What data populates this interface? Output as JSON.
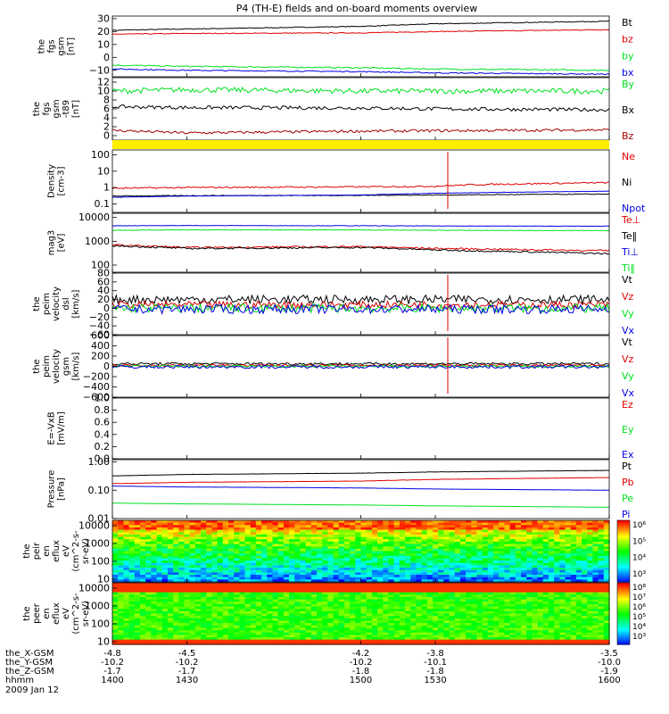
{
  "title": "P4 (TH-E) fields and on-board moments overview",
  "footer": {
    "rows": [
      {
        "label": "the_X-GSM",
        "values": [
          "-4.8",
          "-4.5",
          "-4.2",
          "-3.8",
          "-3.5"
        ]
      },
      {
        "label": "the_Y-GSM",
        "values": [
          "-10.2",
          "-10.2",
          "-10.2",
          "-10.1",
          "-10.0"
        ]
      },
      {
        "label": "the_Z-GSM",
        "values": [
          "-1.7",
          "-1.7",
          "-1.8",
          "-1.8",
          "-1.9"
        ]
      },
      {
        "label": "hhmm",
        "values": [
          "1400",
          "1430",
          "1500",
          "1530",
          "1600"
        ]
      }
    ],
    "date": "2009 Jan 12"
  },
  "colors": {
    "black": "#000000",
    "red": "#e00000",
    "green": "#00e020",
    "blue": "#0000e0",
    "darkred": "#a00000",
    "yellow": "#ffee00"
  },
  "chart_data": [
    {
      "type": "line",
      "ylabel": [
        "the",
        "fgs",
        "gsm",
        "[nT]"
      ],
      "ylim": [
        -15,
        32
      ],
      "yticks": [
        "30",
        "20",
        "10",
        "0",
        "−10"
      ],
      "yticks_vals": [
        30,
        20,
        10,
        0,
        -10
      ],
      "legend": [
        {
          "name": "Bt",
          "color": "black"
        },
        {
          "name": "bz",
          "color": "red"
        },
        {
          "name": "by",
          "color": "green"
        },
        {
          "name": "bx",
          "color": "blue"
        }
      ],
      "series": [
        {
          "name": "Bt",
          "color": "black",
          "x": [
            1400,
            1430,
            1500,
            1530,
            1600
          ],
          "values": [
            21,
            22,
            24,
            26,
            28
          ],
          "noise": 0.3
        },
        {
          "name": "bz",
          "color": "red",
          "x": [
            1400,
            1430,
            1500,
            1530,
            1600
          ],
          "values": [
            18,
            18.5,
            19,
            20,
            21.5
          ],
          "noise": 0.3
        },
        {
          "name": "by",
          "color": "green",
          "x": [
            1400,
            1430,
            1500,
            1530,
            1600
          ],
          "values": [
            -6,
            -7,
            -8,
            -9,
            -10
          ],
          "noise": 0.5
        },
        {
          "name": "bx",
          "color": "blue",
          "x": [
            1400,
            1430,
            1500,
            1530,
            1600
          ],
          "values": [
            -9,
            -10,
            -11,
            -12,
            -13
          ],
          "noise": 0.4
        }
      ]
    },
    {
      "type": "line",
      "ylabel": [
        "the",
        "fgs",
        "gsm",
        "-t89",
        "[nT]"
      ],
      "ylim": [
        -1,
        13
      ],
      "yticks": [
        "12",
        "10",
        "8",
        "6",
        "4",
        "2",
        "0"
      ],
      "yticks_vals": [
        12,
        10,
        8,
        6,
        4,
        2,
        0
      ],
      "legend": [
        {
          "name": "By",
          "color": "green"
        },
        {
          "name": "Bx",
          "color": "black"
        },
        {
          "name": "Bz",
          "color": "darkred"
        }
      ],
      "series": [
        {
          "name": "By",
          "color": "green",
          "x": [
            1400,
            1430,
            1500,
            1530,
            1600
          ],
          "values": [
            10,
            10.3,
            10,
            10,
            10
          ],
          "noise": 0.6
        },
        {
          "name": "Bx",
          "color": "black",
          "x": [
            1400,
            1430,
            1500,
            1530,
            1600
          ],
          "values": [
            6.5,
            6.3,
            6.2,
            6,
            5.8
          ],
          "noise": 0.4
        },
        {
          "name": "Bz",
          "color": "darkred",
          "x": [
            1400,
            1430,
            1500,
            1530,
            1600
          ],
          "values": [
            1.2,
            0.6,
            1,
            1.1,
            1.3
          ],
          "noise": 0.3
        }
      ]
    },
    {
      "type": "bar_strip",
      "color": "yellow"
    },
    {
      "type": "line",
      "log": true,
      "ylabel": [
        "Density",
        "[cm-3]"
      ],
      "ylim": [
        0.03,
        200
      ],
      "yticks": [
        "100",
        "10",
        "1",
        "0.1"
      ],
      "yticks_vals": [
        100,
        10,
        1,
        0.1
      ],
      "legend": [
        {
          "name": "Ne",
          "color": "red"
        },
        {
          "name": "Ni",
          "color": "black"
        },
        {
          "name": "Npot",
          "color": "blue"
        }
      ],
      "series": [
        {
          "name": "Ne",
          "color": "red",
          "x": [
            1400,
            1430,
            1500,
            1530,
            1545,
            1600
          ],
          "values": [
            0.9,
            1.0,
            1.1,
            1.2,
            1.5,
            2.0
          ],
          "noise": 0.1
        },
        {
          "name": "Ni",
          "color": "black",
          "x": [
            1400,
            1430,
            1500,
            1530,
            1600
          ],
          "values": [
            0.3,
            0.32,
            0.33,
            0.35,
            0.4
          ],
          "noise": 0.05
        },
        {
          "name": "Npot",
          "color": "blue",
          "x": [
            1400,
            1430,
            1500,
            1530,
            1600
          ],
          "values": [
            0.25,
            0.3,
            0.35,
            0.45,
            0.6
          ],
          "noise": 0.02
        }
      ]
    },
    {
      "type": "line",
      "log": true,
      "ylabel": [
        "mag3",
        "[eV]"
      ],
      "ylim": [
        50,
        15000
      ],
      "yticks": [
        "10000",
        "1000",
        "100"
      ],
      "yticks_vals": [
        10000,
        1000,
        100
      ],
      "legend": [
        {
          "name": "Te⊥",
          "color": "red"
        },
        {
          "name": "Te‖",
          "color": "black"
        },
        {
          "name": "Ti⊥",
          "color": "blue"
        },
        {
          "name": "Ti‖",
          "color": "green"
        }
      ],
      "series": [
        {
          "name": "Te⊥",
          "color": "red",
          "x": [
            1400,
            1430,
            1500,
            1530,
            1600
          ],
          "values": [
            700,
            550,
            600,
            500,
            400
          ],
          "noise": 0.08
        },
        {
          "name": "Te‖",
          "color": "black",
          "x": [
            1400,
            1430,
            1500,
            1530,
            1600
          ],
          "values": [
            650,
            500,
            550,
            430,
            300
          ],
          "noise": 0.08
        },
        {
          "name": "Ti⊥",
          "color": "blue",
          "x": [
            1400,
            1430,
            1500,
            1530,
            1600
          ],
          "values": [
            4500,
            4600,
            4500,
            4400,
            4300
          ],
          "noise": 0.02
        },
        {
          "name": "Ti‖",
          "color": "green",
          "x": [
            1400,
            1430,
            1500,
            1530,
            1600
          ],
          "values": [
            2900,
            3000,
            3000,
            2900,
            2800
          ],
          "noise": 0.02
        }
      ]
    },
    {
      "type": "line",
      "ylabel": [
        "the",
        "peim",
        "velocity",
        "dsl",
        "[km/s]"
      ],
      "ylim": [
        -60,
        80
      ],
      "yticks": [
        "80",
        "60",
        "40",
        "20",
        "0",
        "−20",
        "−40",
        "−60"
      ],
      "yticks_vals": [
        80,
        60,
        40,
        20,
        0,
        -20,
        -40,
        -60
      ],
      "legend": [
        {
          "name": "Vt",
          "color": "black"
        },
        {
          "name": "Vz",
          "color": "red"
        },
        {
          "name": "Vy",
          "color": "green"
        },
        {
          "name": "Vx",
          "color": "blue"
        }
      ],
      "series": [
        {
          "name": "Vt",
          "color": "black",
          "x": [
            1400,
            1600
          ],
          "values": [
            20,
            20
          ],
          "noise": 10
        },
        {
          "name": "Vz",
          "color": "red",
          "x": [
            1400,
            1600
          ],
          "values": [
            8,
            8
          ],
          "noise": 8
        },
        {
          "name": "Vy",
          "color": "green",
          "x": [
            1400,
            1600
          ],
          "values": [
            0,
            0
          ],
          "noise": 10
        },
        {
          "name": "Vx",
          "color": "blue",
          "x": [
            1400,
            1600
          ],
          "values": [
            -2,
            -2
          ],
          "noise": 10
        }
      ]
    },
    {
      "type": "line",
      "ylabel": [
        "the",
        "peim",
        "velocity",
        "gsm",
        "[km/s]"
      ],
      "ylim": [
        -600,
        600
      ],
      "yticks": [
        "600",
        "400",
        "200",
        "0",
        "−200",
        "−400",
        "−600"
      ],
      "yticks_vals": [
        600,
        400,
        200,
        0,
        -200,
        -400,
        -600
      ],
      "legend": [
        {
          "name": "Vt",
          "color": "black"
        },
        {
          "name": "Vz",
          "color": "red"
        },
        {
          "name": "Vy",
          "color": "green"
        },
        {
          "name": "Vx",
          "color": "blue"
        }
      ],
      "series": [
        {
          "name": "Vt",
          "color": "black",
          "x": [
            1400,
            1600
          ],
          "values": [
            50,
            50
          ],
          "noise": 25
        },
        {
          "name": "Vz",
          "color": "red",
          "x": [
            1400,
            1600
          ],
          "values": [
            20,
            20
          ],
          "noise": 20
        },
        {
          "name": "Vy",
          "color": "green",
          "x": [
            1400,
            1600
          ],
          "values": [
            0,
            0
          ],
          "noise": 25
        },
        {
          "name": "Vx",
          "color": "blue",
          "x": [
            1400,
            1600
          ],
          "values": [
            -10,
            -10
          ],
          "noise": 30
        }
      ]
    },
    {
      "type": "line",
      "ylabel": [
        "E=-VxB",
        "[mV/m]"
      ],
      "ylim": [
        0,
        1
      ],
      "yticks": [
        "1.0",
        "0.8",
        "0.6",
        "0.4",
        "0.2",
        "0.0"
      ],
      "yticks_vals": [
        1,
        0.8,
        0.6,
        0.4,
        0.2,
        0
      ],
      "legend": [
        {
          "name": "Ez",
          "color": "red"
        },
        {
          "name": "Ey",
          "color": "green"
        },
        {
          "name": "Ex",
          "color": "blue"
        }
      ],
      "series": []
    },
    {
      "type": "line",
      "log": true,
      "ylabel": [
        "Pressure",
        "[nPa]"
      ],
      "ylim": [
        0.01,
        1.2
      ],
      "yticks": [
        "1.00",
        "0.10",
        "0.01"
      ],
      "yticks_vals": [
        1,
        0.1,
        0.01
      ],
      "legend": [
        {
          "name": "Pt",
          "color": "black"
        },
        {
          "name": "Pb",
          "color": "red"
        },
        {
          "name": "Pe",
          "color": "green"
        },
        {
          "name": "Pi",
          "color": "blue"
        }
      ],
      "series": [
        {
          "name": "Pt",
          "color": "black",
          "x": [
            1400,
            1430,
            1500,
            1530,
            1600
          ],
          "values": [
            0.32,
            0.36,
            0.4,
            0.44,
            0.5
          ],
          "noise": 0.01
        },
        {
          "name": "Pb",
          "color": "red",
          "x": [
            1400,
            1430,
            1500,
            1530,
            1600
          ],
          "values": [
            0.17,
            0.19,
            0.21,
            0.24,
            0.28
          ],
          "noise": 0.01
        },
        {
          "name": "Pe",
          "color": "green",
          "x": [
            1400,
            1430,
            1500,
            1530,
            1600
          ],
          "values": [
            0.035,
            0.033,
            0.03,
            0.028,
            0.025
          ],
          "noise": 0.003
        },
        {
          "name": "Pi",
          "color": "blue",
          "x": [
            1400,
            1430,
            1500,
            1530,
            1600
          ],
          "values": [
            0.14,
            0.13,
            0.12,
            0.11,
            0.1
          ],
          "noise": 0.005
        }
      ]
    },
    {
      "type": "heatmap",
      "log": true,
      "ylabel": [
        "the",
        "peir",
        "en",
        "eflux",
        "eV",
        "(cm^2-s-",
        "sr-eV)"
      ],
      "ylim": [
        7,
        20000
      ],
      "yticks": [
        "10000",
        "1000",
        "100",
        "10"
      ],
      "yticks_vals": [
        10000,
        1000,
        100,
        10
      ],
      "colorbar": {
        "ticks": [
          "10⁶",
          "10⁵",
          "10⁴",
          "10³"
        ]
      }
    },
    {
      "type": "heatmap",
      "log": true,
      "ylabel": [
        "the",
        "peer",
        "en",
        "eflux",
        "eV",
        "(cm^2-s-",
        "sr-eV)"
      ],
      "ylim": [
        7,
        20000
      ],
      "yticks": [
        "10000",
        "1000",
        "100",
        "10"
      ],
      "yticks_vals": [
        10000,
        1000,
        100,
        10
      ],
      "colorbar": {
        "ticks": [
          "10⁸",
          "10⁷",
          "10⁶",
          "10⁵",
          "10⁴",
          "10³"
        ]
      }
    }
  ]
}
